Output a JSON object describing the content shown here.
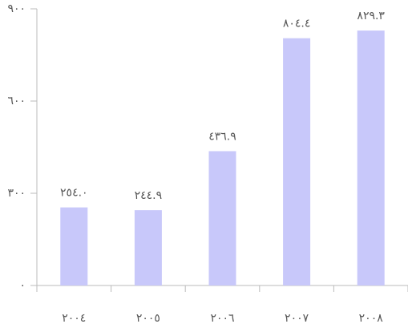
{
  "chart_data": {
    "type": "bar",
    "categories": [
      "٢٠٠٤",
      "٢٠٠٥",
      "٢٠٠٦",
      "٢٠٠٧",
      "٢٠٠٨"
    ],
    "values": [
      254.0,
      244.9,
      436.9,
      804.4,
      829.3
    ],
    "value_labels": [
      "٢٥٤.٠",
      "٢٤٤.٩",
      "٤٣٦.٩",
      "٨٠٤.٤",
      "٨٢٩.٣"
    ],
    "color": "#c8c8fa",
    "ylim": [
      0,
      900
    ],
    "yticks": [
      {
        "value": 0,
        "label": "٠"
      },
      {
        "value": 300,
        "label": "٣٠٠"
      },
      {
        "value": 600,
        "label": "٦٠٠"
      },
      {
        "value": 900,
        "label": "٩٠٠"
      }
    ],
    "grid": false
  }
}
